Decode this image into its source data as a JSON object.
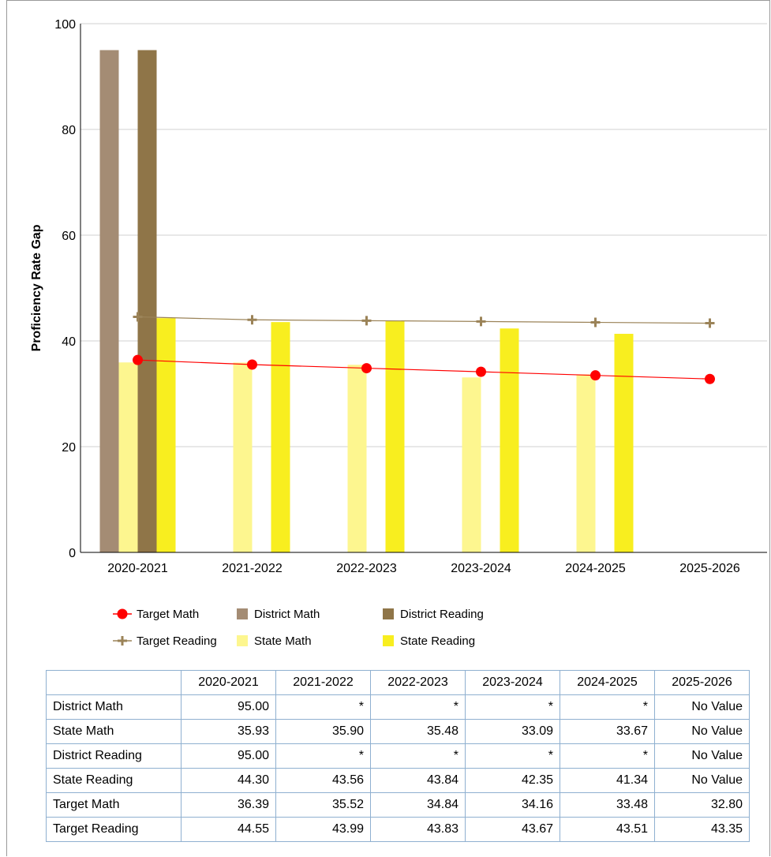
{
  "chart_data": {
    "type": "bar",
    "ylabel": "Proficiency Rate Gap",
    "ylim": [
      0,
      100
    ],
    "yticks": [
      0,
      20,
      40,
      60,
      80,
      100
    ],
    "grid": true,
    "legend_position": "bottom",
    "categories": [
      "2020-2021",
      "2021-2022",
      "2022-2023",
      "2023-2024",
      "2024-2025",
      "2025-2026"
    ],
    "series": [
      {
        "name": "District Math",
        "kind": "bar",
        "color": "#a48c74",
        "values": [
          95.0,
          null,
          null,
          null,
          null,
          null
        ]
      },
      {
        "name": "State Math",
        "kind": "bar",
        "color": "#fdf68f",
        "values": [
          35.93,
          35.9,
          35.48,
          33.09,
          33.67,
          null
        ]
      },
      {
        "name": "District Reading",
        "kind": "bar",
        "color": "#8f7548",
        "values": [
          95.0,
          null,
          null,
          null,
          null,
          null
        ]
      },
      {
        "name": "State Reading",
        "kind": "bar",
        "color": "#f8ee1f",
        "values": [
          44.3,
          43.56,
          43.84,
          42.35,
          41.34,
          null
        ]
      },
      {
        "name": "Target Math",
        "kind": "line",
        "marker": "circle",
        "color": "#ff0000",
        "values": [
          36.39,
          35.52,
          34.84,
          34.16,
          33.48,
          32.8
        ]
      },
      {
        "name": "Target Reading",
        "kind": "line",
        "marker": "plus",
        "color": "#9b8358",
        "values": [
          44.55,
          43.99,
          43.83,
          43.67,
          43.51,
          43.35
        ]
      }
    ],
    "legend": [
      {
        "name": "Target Math",
        "symbol": "circle-line",
        "color": "#ff0000"
      },
      {
        "name": "District Math",
        "symbol": "square",
        "color": "#a48c74"
      },
      {
        "name": "District Reading",
        "symbol": "square",
        "color": "#8f7548"
      },
      {
        "name": "Target Reading",
        "symbol": "plus-line",
        "color": "#9b8358"
      },
      {
        "name": "State Math",
        "symbol": "square",
        "color": "#fdf68f"
      },
      {
        "name": "State Reading",
        "symbol": "square",
        "color": "#f8ee1f"
      }
    ]
  },
  "table": {
    "columns": [
      "2020-2021",
      "2021-2022",
      "2022-2023",
      "2023-2024",
      "2024-2025",
      "2025-2026"
    ],
    "rows": [
      {
        "label": "District Math",
        "cells": [
          "95.00",
          "*",
          "*",
          "*",
          "*",
          "No Value"
        ]
      },
      {
        "label": "State Math",
        "cells": [
          "35.93",
          "35.90",
          "35.48",
          "33.09",
          "33.67",
          "No Value"
        ]
      },
      {
        "label": "District Reading",
        "cells": [
          "95.00",
          "*",
          "*",
          "*",
          "*",
          "No Value"
        ]
      },
      {
        "label": "State Reading",
        "cells": [
          "44.30",
          "43.56",
          "43.84",
          "42.35",
          "41.34",
          "No Value"
        ]
      },
      {
        "label": "Target Math",
        "cells": [
          "36.39",
          "35.52",
          "34.84",
          "34.16",
          "33.48",
          "32.80"
        ]
      },
      {
        "label": "Target Reading",
        "cells": [
          "44.55",
          "43.99",
          "43.83",
          "43.67",
          "43.51",
          "43.35"
        ]
      }
    ]
  }
}
